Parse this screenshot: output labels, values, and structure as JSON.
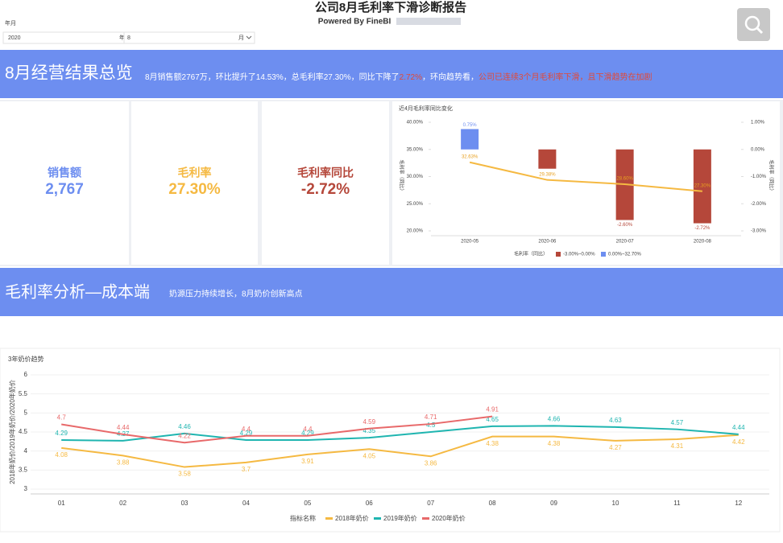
{
  "header": {
    "title": "公司8月毛利率下滑诊断报告",
    "subtitle": "Powered By FineBI"
  },
  "filters": {
    "label": "年月",
    "year": "2020",
    "year_unit": "年",
    "month": "8",
    "month_unit": "月"
  },
  "banner1": {
    "title": "8月经营结果总览",
    "summary": [
      {
        "text": "8月销售额2767万，环比提升了14.53%，总毛利率27.30%，同比下降了"
      },
      {
        "text": "2.72%",
        "color": "#e04a3a"
      },
      {
        "text": "，环向趋势看，"
      },
      {
        "text": "公司已连续3个月毛利率下滑，且下滑趋势在加剧",
        "color": "#e04a3a"
      }
    ]
  },
  "kpis": [
    {
      "label": "销售额",
      "value": "2,767",
      "color": "#6d8ef0"
    },
    {
      "label": "毛利率",
      "value": "27.30%",
      "color": "#f5b942"
    },
    {
      "label": "毛利率同比",
      "value": "-2.72%",
      "color": "#b5473a"
    }
  ],
  "banner2": {
    "title": "毛利率分析—成本端",
    "subtitle": "奶源压力持续增长，8月奶价创新高点"
  },
  "chart_data": [
    {
      "type": "combo",
      "title": "近4月毛利率同比变化",
      "categories": [
        "2020-05",
        "2020-06",
        "2020-07",
        "2020-08"
      ],
      "ylabel": "毛利率（同比）",
      "y2label": "毛利率（同比）",
      "ylim": [
        20,
        40
      ],
      "yticks": [
        {
          "value": 40,
          "label": "40.00%"
        },
        {
          "value": 35,
          "label": "35.00%"
        },
        {
          "value": 30,
          "label": "30.00%"
        },
        {
          "value": 25,
          "label": "25.00%"
        },
        {
          "value": 20,
          "label": "20.00%"
        }
      ],
      "y2lim": [
        -3,
        1
      ],
      "y2ticks": [
        {
          "value": 1,
          "label": "1.00%"
        },
        {
          "value": 0,
          "label": "0.00%"
        },
        {
          "value": -1,
          "label": "-1.00%"
        },
        {
          "value": -2,
          "label": "-2.00%"
        },
        {
          "value": -3,
          "label": "-3.00%"
        }
      ],
      "legend_title": "毛利率（同比）",
      "legend": [
        {
          "name": "-3.00%~0.00%",
          "color": "#b5473a"
        },
        {
          "name": "0.00%~32.70%",
          "color": "#6d8ef0"
        }
      ],
      "series": [
        {
          "type": "bar",
          "axis": "y2",
          "values": [
            0.75,
            -0.71,
            -2.6,
            -2.72
          ],
          "value_labels": [
            "0.75%",
            null,
            "-2.60%",
            "-2.72%"
          ]
        },
        {
          "type": "line",
          "color": "#f5b942",
          "values": [
            32.63,
            29.38,
            28.6,
            27.3
          ],
          "value_labels": [
            "32.63%",
            "29.38%",
            "28.60%",
            "27.30%"
          ]
        }
      ]
    },
    {
      "type": "line",
      "title": "3年奶价趋势",
      "ylabel": "2018年奶价/2019年奶价/2020年奶价",
      "categories": [
        "01",
        "02",
        "03",
        "04",
        "05",
        "06",
        "07",
        "08",
        "09",
        "10",
        "11",
        "12"
      ],
      "ylim": [
        3,
        6
      ],
      "yticks": [
        3,
        3.5,
        4,
        4.5,
        5,
        5.5,
        6
      ],
      "grid": true,
      "legend_title": "指标名称",
      "series": [
        {
          "name": "2018年奶价",
          "color": "#f5b942",
          "values": [
            4.08,
            3.88,
            3.58,
            3.7,
            3.91,
            4.05,
            3.86,
            4.38,
            4.38,
            4.27,
            4.31,
            4.42
          ]
        },
        {
          "name": "2019年奶价",
          "color": "#1fb5b0",
          "values": [
            4.29,
            4.27,
            4.46,
            4.29,
            4.29,
            4.35,
            4.5,
            4.65,
            4.66,
            4.63,
            4.57,
            4.44
          ]
        },
        {
          "name": "2020年奶价",
          "color": "#e8696a",
          "values": [
            4.7,
            4.44,
            4.22,
            4.4,
            4.4,
            4.59,
            4.71,
            4.91,
            null,
            null,
            null,
            null
          ]
        }
      ]
    }
  ]
}
